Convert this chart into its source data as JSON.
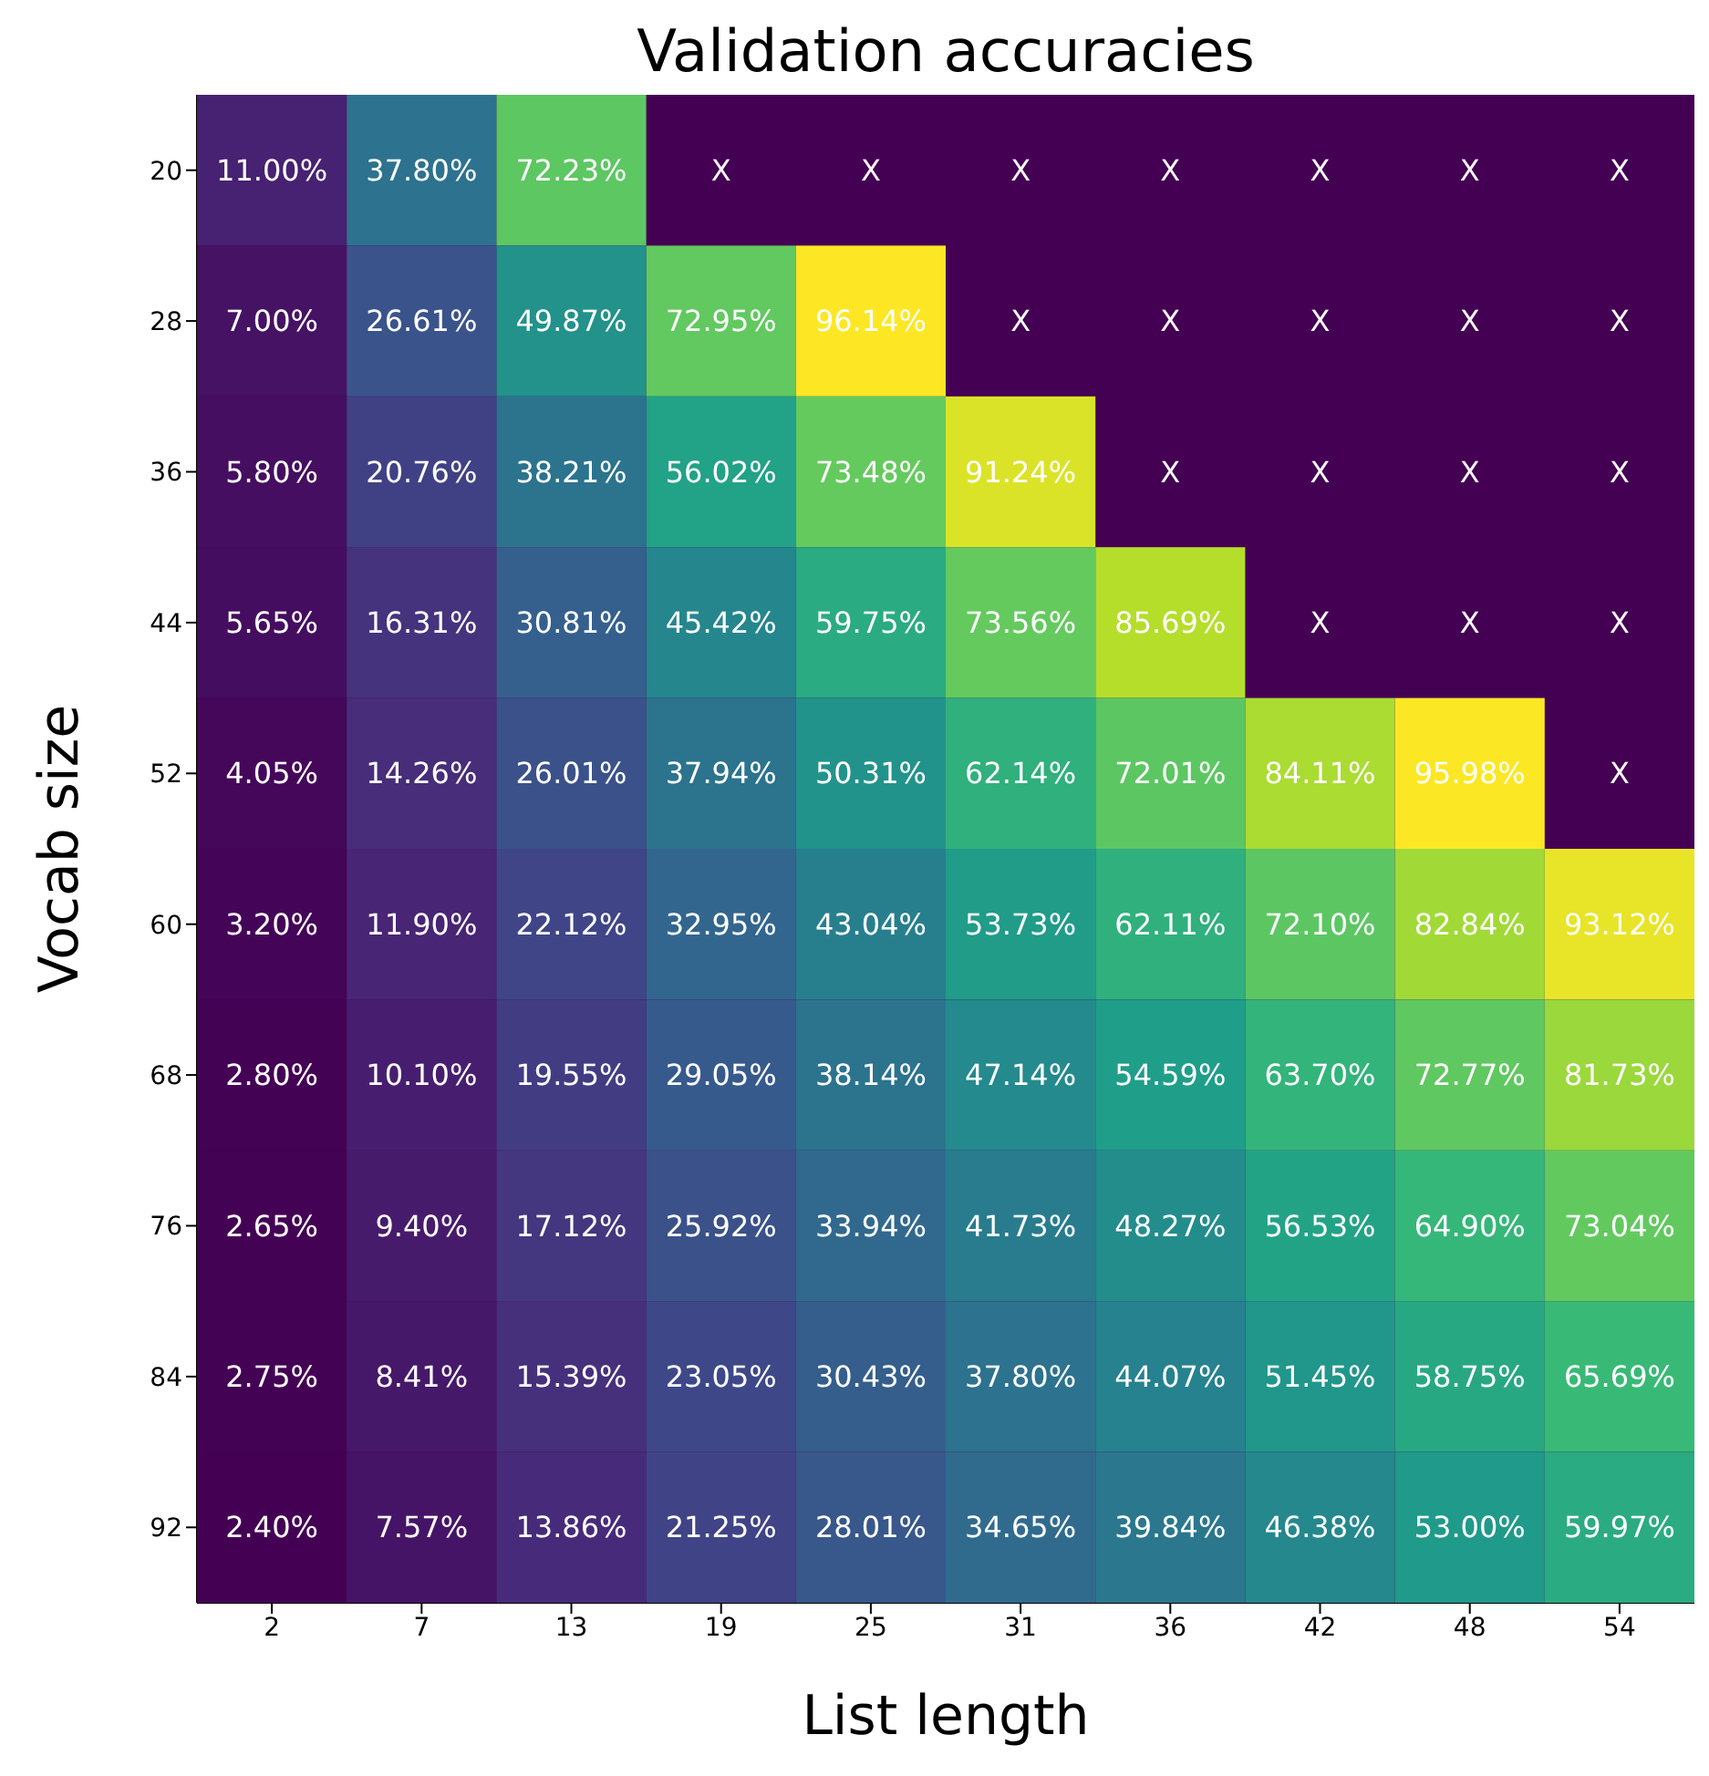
{
  "chart_data": {
    "type": "heatmap",
    "title": "Validation accuracies",
    "xlabel": "List length",
    "ylabel": "Vocab size",
    "categories": [
      "2",
      "7",
      "13",
      "19",
      "25",
      "31",
      "36",
      "42",
      "48",
      "54"
    ],
    "y_categories": [
      "20",
      "28",
      "36",
      "44",
      "52",
      "60",
      "68",
      "76",
      "84",
      "92"
    ],
    "cells": [
      [
        11.0,
        37.8,
        72.23,
        null,
        null,
        null,
        null,
        null,
        null,
        null
      ],
      [
        7.0,
        26.61,
        49.87,
        72.95,
        96.14,
        null,
        null,
        null,
        null,
        null
      ],
      [
        5.8,
        20.76,
        38.21,
        56.02,
        73.48,
        91.24,
        null,
        null,
        null,
        null
      ],
      [
        5.65,
        16.31,
        30.81,
        45.42,
        59.75,
        73.56,
        85.69,
        null,
        null,
        null
      ],
      [
        4.05,
        14.26,
        26.01,
        37.94,
        50.31,
        62.14,
        72.01,
        84.11,
        95.98,
        null
      ],
      [
        3.2,
        11.9,
        22.12,
        32.95,
        43.04,
        53.73,
        62.11,
        72.1,
        82.84,
        93.12
      ],
      [
        2.8,
        10.1,
        19.55,
        29.05,
        38.14,
        47.14,
        54.59,
        63.7,
        72.77,
        81.73
      ],
      [
        2.65,
        9.4,
        17.12,
        25.92,
        33.94,
        41.73,
        48.27,
        56.53,
        64.9,
        73.04
      ],
      [
        2.75,
        8.41,
        15.39,
        23.05,
        30.43,
        37.8,
        44.07,
        51.45,
        58.75,
        65.69
      ],
      [
        2.4,
        7.57,
        13.86,
        21.25,
        28.01,
        34.65,
        39.84,
        46.38,
        53.0,
        59.97
      ]
    ],
    "cell_labels": [
      [
        "11.00%",
        "37.80%",
        "72.23%",
        "X",
        "X",
        "X",
        "X",
        "X",
        "X",
        "X"
      ],
      [
        "7.00%",
        "26.61%",
        "49.87%",
        "72.95%",
        "96.14%",
        "X",
        "X",
        "X",
        "X",
        "X"
      ],
      [
        "5.80%",
        "20.76%",
        "38.21%",
        "56.02%",
        "73.48%",
        "91.24%",
        "X",
        "X",
        "X",
        "X"
      ],
      [
        "5.65%",
        "16.31%",
        "30.81%",
        "45.42%",
        "59.75%",
        "73.56%",
        "85.69%",
        "X",
        "X",
        "X"
      ],
      [
        "4.05%",
        "14.26%",
        "26.01%",
        "37.94%",
        "50.31%",
        "62.14%",
        "72.01%",
        "84.11%",
        "95.98%",
        "X"
      ],
      [
        "3.20%",
        "11.90%",
        "22.12%",
        "32.95%",
        "43.04%",
        "53.73%",
        "62.11%",
        "72.10%",
        "82.84%",
        "93.12%"
      ],
      [
        "2.80%",
        "10.10%",
        "19.55%",
        "29.05%",
        "38.14%",
        "47.14%",
        "54.59%",
        "63.70%",
        "72.77%",
        "81.73%"
      ],
      [
        "2.65%",
        "9.40%",
        "17.12%",
        "25.92%",
        "33.94%",
        "41.73%",
        "48.27%",
        "56.53%",
        "64.90%",
        "73.04%"
      ],
      [
        "2.75%",
        "8.41%",
        "15.39%",
        "23.05%",
        "30.43%",
        "37.80%",
        "44.07%",
        "51.45%",
        "58.75%",
        "65.69%"
      ],
      [
        "2.40%",
        "7.57%",
        "13.86%",
        "21.25%",
        "28.01%",
        "34.65%",
        "39.84%",
        "46.38%",
        "53.00%",
        "59.97%"
      ]
    ]
  }
}
